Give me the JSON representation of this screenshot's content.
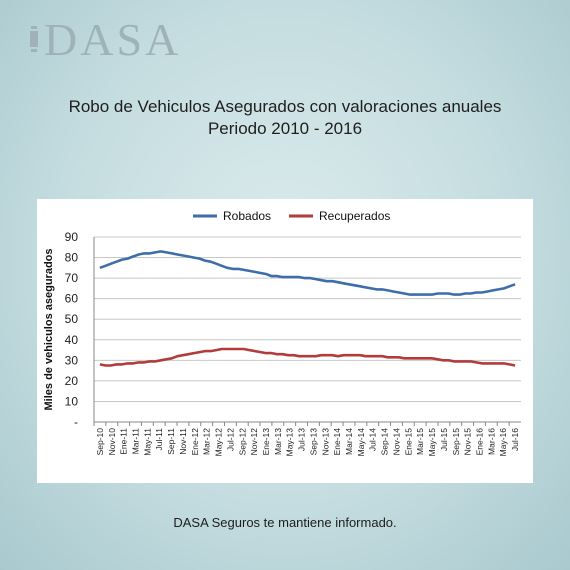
{
  "brand": {
    "logo_text": "DASA"
  },
  "title_line1": "Robo de Vehiculos Asegurados con valoraciones anuales",
  "title_line2": "Periodo 2010 - 2016",
  "footer": "DASA Seguros te mantiene informado.",
  "chart_data": {
    "type": "line",
    "ylabel": "Miles de vehiculos asegurados",
    "xlabel": "",
    "ylim": [
      0,
      90
    ],
    "y_ticks": [
      "-",
      "10",
      "20",
      "30",
      "40",
      "50",
      "60",
      "70",
      "80",
      "90"
    ],
    "grid": true,
    "legend_position": "top",
    "x_tick_labels": [
      "Sep-10",
      "Nov-10",
      "Ene-11",
      "Mar-11",
      "May-11",
      "Jul-11",
      "Sep-11",
      "Nov-11",
      "Ene-12",
      "Mar-12",
      "May-12",
      "Jul-12",
      "Sep-12",
      "Nov-12",
      "Ene-13",
      "Mar-13",
      "May-13",
      "Jul-13",
      "Sep-13",
      "Nov-13",
      "Ene-14",
      "Mar-14",
      "May-14",
      "Jul-14",
      "Sep-14",
      "Nov-14",
      "Ene-15",
      "Mar-15",
      "May-15",
      "Jul-15",
      "Sep-15",
      "Nov-15",
      "Ene-16",
      "Mar-16",
      "May-16",
      "Jul-16"
    ],
    "series": [
      {
        "name": "Robados",
        "color": "#3d6eaa",
        "values": [
          75,
          76,
          77,
          78,
          79,
          79.5,
          80.5,
          81.5,
          82,
          82,
          82.5,
          83,
          82.5,
          82,
          81.5,
          81,
          80.5,
          80,
          79.5,
          78.5,
          78,
          77,
          76,
          75,
          74.5,
          74.5,
          74,
          73.5,
          73,
          72.5,
          72,
          71,
          71,
          70.5,
          70.5,
          70.5,
          70.5,
          70,
          70,
          69.5,
          69,
          68.5,
          68.5,
          68,
          67.5,
          67,
          66.5,
          66,
          65.5,
          65,
          64.5,
          64.5,
          64,
          63.5,
          63,
          62.5,
          62,
          62,
          62,
          62,
          62,
          62.5,
          62.5,
          62.5,
          62,
          62,
          62.5,
          62.5,
          63,
          63,
          63.5,
          64,
          64.5,
          65,
          66,
          67
        ]
      },
      {
        "name": "Recuperados",
        "color": "#b23b3b",
        "values": [
          28,
          27.5,
          27.5,
          28,
          28,
          28.5,
          28.5,
          29,
          29,
          29.5,
          29.5,
          30,
          30.5,
          31,
          32,
          32.5,
          33,
          33.5,
          34,
          34.5,
          34.5,
          35,
          35.5,
          35.5,
          35.5,
          35.5,
          35.5,
          35,
          34.5,
          34,
          33.5,
          33.5,
          33,
          33,
          32.5,
          32.5,
          32,
          32,
          32,
          32,
          32.5,
          32.5,
          32.5,
          32,
          32.5,
          32.5,
          32.5,
          32.5,
          32,
          32,
          32,
          32,
          31.5,
          31.5,
          31.5,
          31,
          31,
          31,
          31,
          31,
          31,
          30.5,
          30,
          30,
          29.5,
          29.5,
          29.5,
          29.5,
          29,
          28.5,
          28.5,
          28.5,
          28.5,
          28.5,
          28,
          27.5
        ]
      }
    ]
  }
}
